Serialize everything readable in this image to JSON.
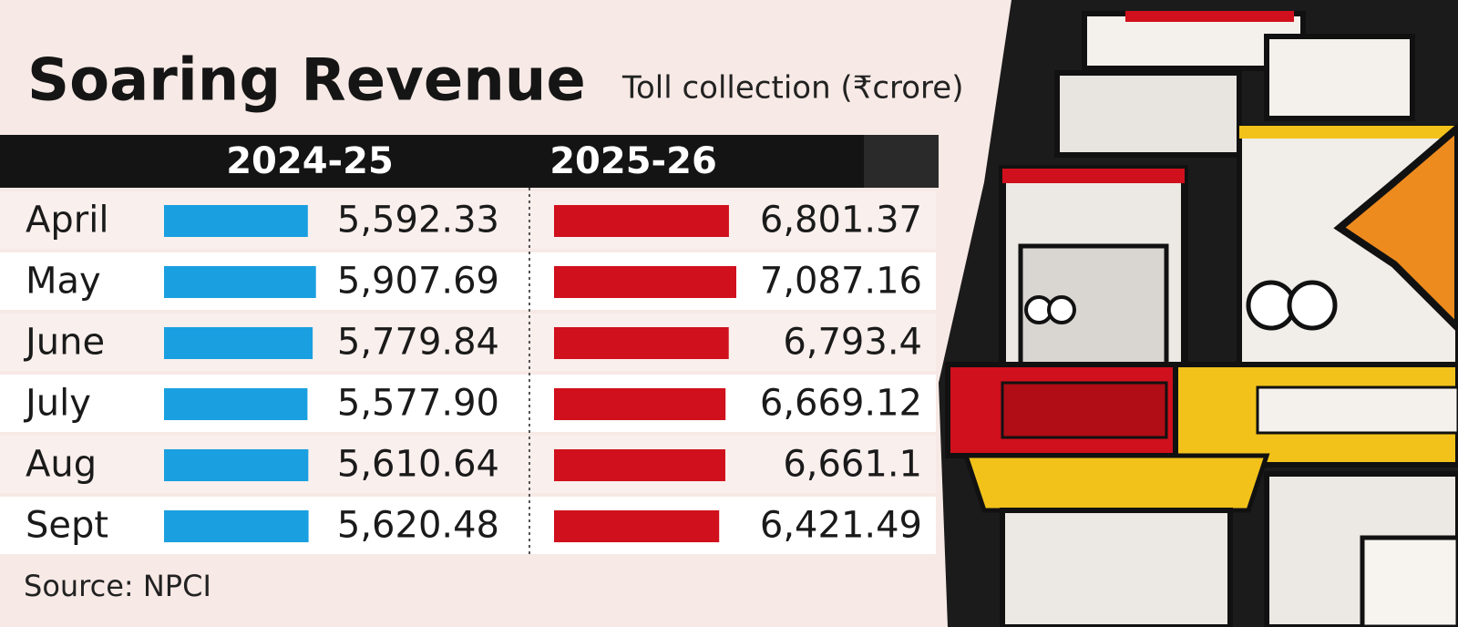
{
  "chart_data": {
    "type": "bar",
    "title": "Soaring Revenue",
    "subtitle": "Toll collection (₹crore)",
    "source": "Source: NPCI",
    "categories": [
      "April",
      "May",
      "June",
      "July",
      "Aug",
      "Sept"
    ],
    "series": [
      {
        "name": "2024-25",
        "color": "#1a9fe0",
        "values": [
          5592.33,
          5907.69,
          5779.84,
          5577.9,
          5610.64,
          5620.48
        ],
        "value_labels": [
          "5,592.33",
          "5,907.69",
          "5,779.84",
          "5,577.90",
          "5,610.64",
          "5,620.48"
        ]
      },
      {
        "name": "2025-26",
        "color": "#d0101c",
        "values": [
          6801.37,
          7087.16,
          6793.4,
          6669.12,
          6661.1,
          6421.49
        ],
        "value_labels": [
          "6,801.37",
          "7,087.16",
          "6,793.4",
          "6,669.12",
          "6,661.1",
          "6,421.49"
        ]
      }
    ]
  }
}
